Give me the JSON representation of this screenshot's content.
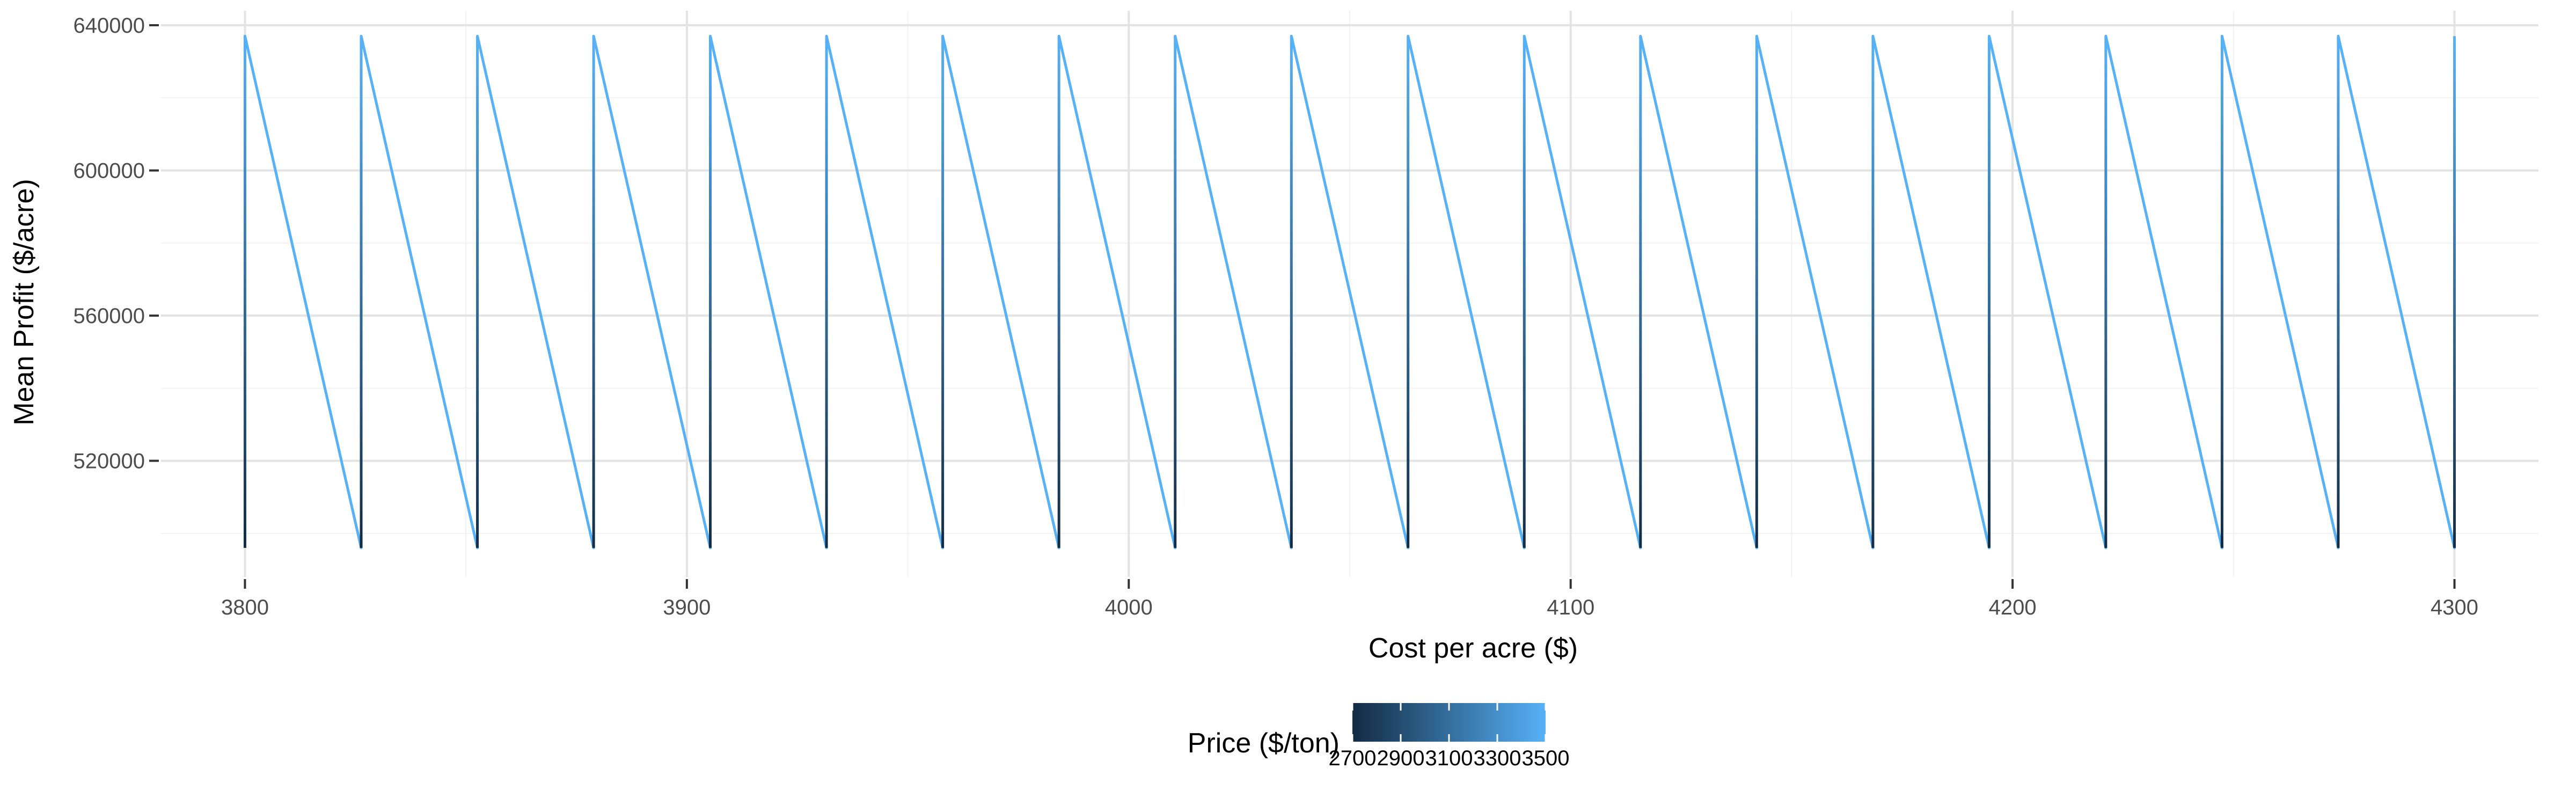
{
  "chart_data": {
    "type": "line",
    "title": "",
    "xlabel": "Cost per acre ($)",
    "ylabel": "Mean Profit ($/acre)",
    "xlim": [
      3781,
      4319
    ],
    "ylim": [
      488000,
      644000
    ],
    "x_ticks": [
      3800,
      3900,
      4000,
      4100,
      4200,
      4300
    ],
    "x_tick_labels": [
      "3800",
      "3900",
      "4000",
      "4100",
      "4200",
      "4300"
    ],
    "y_ticks": [
      520000,
      560000,
      600000,
      640000
    ],
    "y_tick_labels": [
      "520000",
      "560000",
      "600000",
      "640000"
    ],
    "grid": true,
    "cost_values": [
      3800,
      3826.3,
      3852.6,
      3878.9,
      3905.3,
      3931.6,
      3957.9,
      3984.2,
      4010.5,
      4036.8,
      4063.2,
      4089.5,
      4115.8,
      4142.1,
      4168.4,
      4194.7,
      4221.1,
      4247.4,
      4273.7,
      4300
    ],
    "profit_range_at_price": {
      "price_min": 2700,
      "profit_low": 496000,
      "price_max": 3500,
      "profit_high": 637000
    },
    "color_scale": {
      "title": "Price ($/ton)",
      "min": 2700,
      "max": 3500,
      "low_color": "#132B43",
      "high_color": "#56B1F7",
      "ticks": [
        2700,
        2900,
        3100,
        3300,
        3500
      ],
      "tick_labels": [
        "2700",
        "2900",
        "3100",
        "3300",
        "3500"
      ]
    },
    "legend_position": "bottom"
  }
}
